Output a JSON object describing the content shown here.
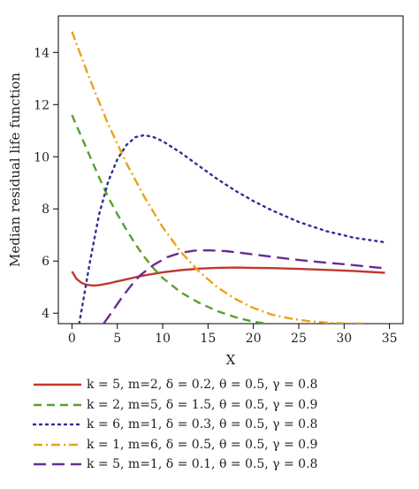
{
  "chart_data": {
    "type": "line",
    "title": "",
    "xlabel": "X",
    "ylabel": "Median residual life function",
    "xlim": [
      -1.5,
      36.5
    ],
    "ylim": [
      3.6,
      15.4
    ],
    "xticks": [
      0,
      5,
      10,
      15,
      20,
      25,
      30,
      35
    ],
    "yticks": [
      4,
      6,
      8,
      10,
      12,
      14
    ],
    "grid": false,
    "legend_position": "bottom",
    "series": [
      {
        "name": "k = 5, m=2, δ = 0.2, θ = 0.5, γ = 0.8",
        "color": "#c0392b",
        "dash": "solid",
        "x": [
          0,
          0.5,
          1,
          1.5,
          2,
          2.5,
          3,
          4,
          5,
          6,
          7,
          8,
          10,
          12,
          14,
          16,
          18,
          20,
          22,
          25,
          28,
          31,
          34.5
        ],
        "y": [
          5.6,
          5.32,
          5.18,
          5.1,
          5.07,
          5.06,
          5.08,
          5.14,
          5.22,
          5.3,
          5.38,
          5.45,
          5.57,
          5.65,
          5.71,
          5.74,
          5.75,
          5.74,
          5.73,
          5.7,
          5.66,
          5.62,
          5.55
        ]
      },
      {
        "name": "k = 2, m=5, δ = 1.5, θ = 0.5, γ = 0.9",
        "color": "#5aa02c",
        "dash": "dashed",
        "x": [
          0,
          1,
          2,
          3,
          4,
          5,
          6,
          7,
          8,
          9,
          10,
          12,
          14,
          16,
          18,
          20,
          21.5
        ],
        "y": [
          11.6,
          10.8,
          10.0,
          9.2,
          8.45,
          7.8,
          7.2,
          6.65,
          6.15,
          5.72,
          5.35,
          4.8,
          4.4,
          4.08,
          3.85,
          3.67,
          3.6
        ]
      },
      {
        "name": "k = 6, m=1, δ = 0.3, θ = 0.5, γ = 0.8",
        "color": "#2e3192",
        "dash": "dotted",
        "x": [
          0.8,
          1.5,
          2,
          3,
          4,
          5,
          6,
          7,
          8,
          9,
          10,
          12,
          14,
          16,
          18,
          20,
          22,
          25,
          28,
          31,
          34.5
        ],
        "y": [
          3.6,
          5.0,
          6.0,
          7.8,
          9.05,
          9.9,
          10.45,
          10.75,
          10.83,
          10.75,
          10.6,
          10.15,
          9.65,
          9.15,
          8.7,
          8.3,
          7.95,
          7.5,
          7.15,
          6.9,
          6.72
        ]
      },
      {
        "name": "k = 1, m=6, δ = 0.5, θ = 0.5, γ = 0.9",
        "color": "#e8a317",
        "dash": "dashdot",
        "x": [
          0,
          2,
          4,
          6,
          8,
          10,
          12,
          14,
          16,
          18,
          20,
          22,
          24,
          26,
          28,
          30,
          32.5
        ],
        "y": [
          14.8,
          12.95,
          11.25,
          9.75,
          8.45,
          7.3,
          6.35,
          5.6,
          5.0,
          4.55,
          4.2,
          3.95,
          3.8,
          3.7,
          3.64,
          3.61,
          3.6
        ]
      },
      {
        "name": "k = 5, m=1, δ = 0.1, θ = 0.5, γ = 0.8",
        "color": "#6a2c91",
        "dash": "longdash",
        "x": [
          3.5,
          4.5,
          5.5,
          6.5,
          7.5,
          9,
          10.5,
          12,
          13.5,
          15,
          17,
          19,
          21,
          24,
          27,
          30,
          34.5
        ],
        "y": [
          3.6,
          4.1,
          4.6,
          5.05,
          5.45,
          5.85,
          6.15,
          6.32,
          6.4,
          6.41,
          6.38,
          6.3,
          6.21,
          6.08,
          5.97,
          5.88,
          5.72
        ]
      }
    ]
  }
}
